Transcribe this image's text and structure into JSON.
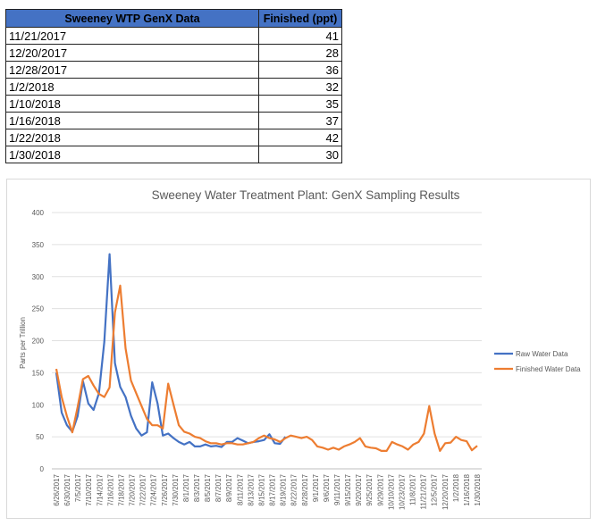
{
  "table": {
    "headers": [
      "Sweeney WTP GenX Data",
      "Finished (ppt)"
    ],
    "rows": [
      {
        "date": "11/21/2017",
        "value": "41"
      },
      {
        "date": "12/20/2017",
        "value": "28"
      },
      {
        "date": "12/28/2017",
        "value": "36"
      },
      {
        "date": "1/2/2018",
        "value": "32"
      },
      {
        "date": "1/10/2018",
        "value": "35"
      },
      {
        "date": "1/16/2018",
        "value": "37"
      },
      {
        "date": "1/22/2018",
        "value": "42"
      },
      {
        "date": "1/30/2018",
        "value": "30"
      }
    ]
  },
  "chart_data": {
    "type": "line",
    "title": "Sweeney Water Treatment Plant: GenX Sampling Results",
    "xlabel": "",
    "ylabel": "Parts per Trillion",
    "ylim": [
      0,
      400
    ],
    "yticks": [
      0,
      50,
      100,
      150,
      200,
      250,
      300,
      350,
      400
    ],
    "grid": true,
    "legend_position": "right",
    "categories": [
      "6/26/2017",
      "6/30/2017",
      "7/5/2017",
      "7/10/2017",
      "7/14/2017",
      "7/16/2017",
      "7/18/2017",
      "7/20/2017",
      "7/22/2017",
      "7/24/2017",
      "7/26/2017",
      "7/30/2017",
      "8/1/2017",
      "8/3/2017",
      "8/5/2017",
      "8/7/2017",
      "8/9/2017",
      "8/11/2017",
      "8/13/2017",
      "8/15/2017",
      "8/17/2017",
      "8/19/2017",
      "8/22/2017",
      "8/28/2017",
      "9/1/2017",
      "9/6/2017",
      "9/11/2017",
      "9/15/2017",
      "9/20/2017",
      "9/25/2017",
      "9/29/2017",
      "10/10/2017",
      "10/23/2017",
      "11/8/2017",
      "11/21/2017",
      "12/5/2017",
      "12/20/2017",
      "1/2/2018",
      "1/16/2018",
      "1/30/2018"
    ],
    "series": [
      {
        "name": "Raw Water Data",
        "color": "#4472c4",
        "x": [
          0,
          1,
          2,
          3,
          4,
          5,
          6,
          7,
          8,
          9,
          10,
          11,
          12,
          13,
          14,
          15,
          16,
          17,
          18,
          19,
          20,
          21,
          22,
          23,
          24,
          25,
          26,
          27,
          28,
          29,
          30,
          31,
          32,
          33,
          34,
          35,
          36,
          37,
          38,
          39,
          40,
          41,
          42,
          43
        ],
        "values": [
          150,
          88,
          68,
          58,
          82,
          137,
          102,
          92,
          118,
          198,
          335,
          165,
          128,
          112,
          83,
          63,
          52,
          57,
          135,
          102,
          52,
          55,
          48,
          42,
          38,
          42,
          35,
          35,
          38,
          35,
          36,
          34,
          42,
          42,
          48,
          44,
          40,
          42,
          43,
          45,
          54,
          40,
          39,
          50
        ]
      },
      {
        "name": "Finished Water Data",
        "color": "#ed7d31",
        "x": [
          0,
          1,
          2,
          3,
          4,
          5,
          6,
          7,
          8,
          9,
          10,
          11,
          12,
          13,
          14,
          15,
          16,
          17,
          18,
          19,
          20,
          21,
          22,
          23,
          24,
          25,
          26,
          27,
          28,
          29,
          30,
          31,
          32,
          33,
          34,
          35,
          36,
          37,
          38,
          39,
          40,
          41,
          42,
          43,
          44,
          45,
          46,
          47,
          48,
          49,
          50,
          51,
          52,
          53,
          54,
          55,
          56,
          57,
          58,
          59,
          60,
          61,
          62,
          63,
          64,
          65,
          66,
          67,
          68,
          69,
          70,
          71,
          72,
          73,
          74,
          75,
          76,
          77,
          78,
          79
        ],
        "values": [
          156,
          112,
          82,
          57,
          96,
          140,
          145,
          130,
          117,
          112,
          127,
          244,
          286,
          188,
          138,
          118,
          98,
          78,
          68,
          68,
          63,
          133,
          100,
          68,
          58,
          55,
          50,
          48,
          43,
          40,
          40,
          38,
          40,
          40,
          38,
          38,
          40,
          42,
          48,
          52,
          48,
          46,
          42,
          48,
          52,
          50,
          48,
          50,
          45,
          35,
          33,
          30,
          33,
          30,
          35,
          38,
          42,
          48,
          35,
          33,
          32,
          28,
          28,
          42,
          38,
          35,
          30,
          38,
          42,
          55,
          98,
          55,
          28,
          40,
          41,
          50,
          45,
          43,
          29,
          36
        ]
      }
    ]
  }
}
